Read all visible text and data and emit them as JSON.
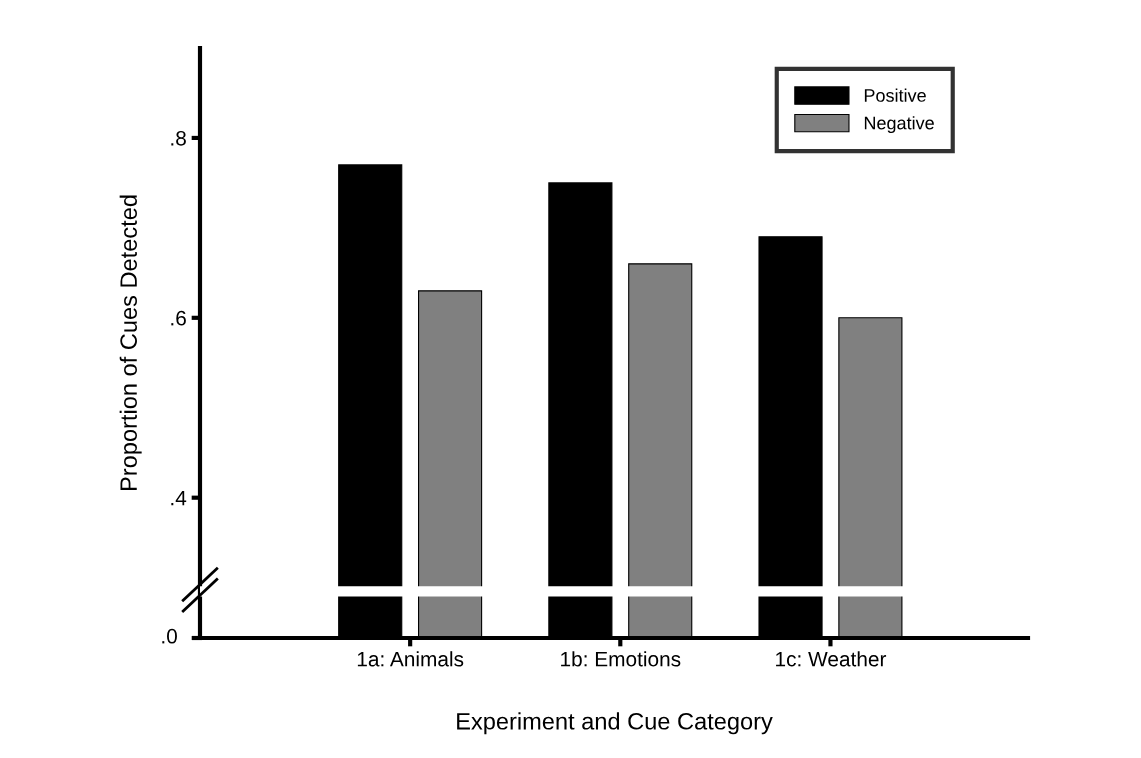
{
  "chart_data": {
    "type": "bar",
    "xlabel": "Experiment and Cue Category",
    "ylabel": "Proportion of Cues Detected",
    "categories": [
      "1a: Animals",
      "1b: Emotions",
      "1c: Weather"
    ],
    "series": [
      {
        "name": "Positive",
        "color": "#000000",
        "values": [
          0.77,
          0.75,
          0.69
        ]
      },
      {
        "name": "Negative",
        "color": "#808080",
        "values": [
          0.63,
          0.66,
          0.6
        ]
      }
    ],
    "ylim": [
      0.244,
      0.9
    ],
    "yticks": [
      {
        "value": 0.4,
        "label": ".4"
      },
      {
        "value": 0.6,
        "label": ".6"
      },
      {
        "value": 0.8,
        "label": ".8"
      }
    ],
    "annotations": [
      ".0"
    ],
    "grid": false,
    "legend": "top right"
  }
}
